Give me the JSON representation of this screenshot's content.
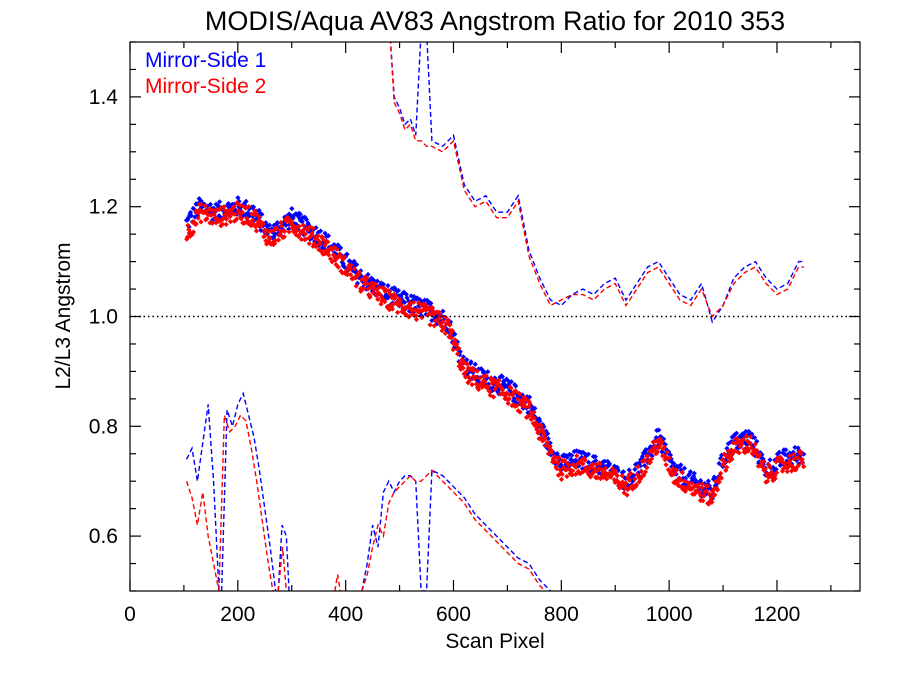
{
  "chart_data": {
    "type": "scatter",
    "title": "MODIS/Aqua AV83 Angstrom Ratio for 2010 353",
    "xlabel": "Scan Pixel",
    "ylabel": "L2/L3 Angstrom",
    "xlim": [
      0,
      1354
    ],
    "ylim": [
      0.5,
      1.5
    ],
    "xticks": [
      0,
      200,
      400,
      600,
      800,
      1000,
      1200
    ],
    "yticks": [
      0.6,
      0.8,
      1.0,
      1.2,
      1.4
    ],
    "xtick_labels": [
      "0",
      "200",
      "400",
      "600",
      "800",
      "1000",
      "1200"
    ],
    "ytick_labels": [
      "0.6",
      "0.8",
      "1.0",
      "1.2",
      "1.4"
    ],
    "reference_line": {
      "y": 1.0,
      "style": "dotted",
      "color": "#000000"
    },
    "grid": false,
    "legend_placement": "top-left",
    "series": [
      {
        "name": "Mirror-Side 1",
        "color": "#0000ff",
        "trend": {
          "x": [
            105,
            130,
            160,
            200,
            230,
            260,
            300,
            330,
            360,
            400,
            430,
            460,
            500,
            530,
            560,
            590,
            620,
            650,
            700,
            740,
            770,
            800,
            830,
            860,
            890,
            920,
            950,
            980,
            1010,
            1040,
            1060,
            1080,
            1100,
            1120,
            1150,
            1180,
            1210,
            1250
          ],
          "y": [
            1.17,
            1.2,
            1.19,
            1.2,
            1.19,
            1.15,
            1.18,
            1.16,
            1.14,
            1.1,
            1.07,
            1.05,
            1.03,
            1.02,
            1.01,
            0.99,
            0.91,
            0.89,
            0.87,
            0.84,
            0.78,
            0.73,
            0.74,
            0.73,
            0.72,
            0.7,
            0.73,
            0.78,
            0.72,
            0.7,
            0.69,
            0.68,
            0.74,
            0.77,
            0.78,
            0.72,
            0.74,
            0.75
          ]
        },
        "upper_dashed": {
          "x": [
            480,
            490,
            500,
            510,
            520,
            530,
            540,
            550,
            560,
            580,
            600,
            620,
            640,
            660,
            680,
            700,
            720,
            740,
            760,
            780,
            800,
            820,
            840,
            860,
            880,
            900,
            920,
            940,
            960,
            980,
            1000,
            1020,
            1040,
            1060,
            1080,
            1100,
            1120,
            1140,
            1160,
            1180,
            1200,
            1220,
            1240,
            1250
          ],
          "y": [
            1.55,
            1.4,
            1.38,
            1.35,
            1.36,
            1.33,
            1.52,
            1.52,
            1.32,
            1.31,
            1.33,
            1.24,
            1.21,
            1.22,
            1.19,
            1.19,
            1.22,
            1.12,
            1.07,
            1.03,
            1.02,
            1.04,
            1.05,
            1.04,
            1.06,
            1.07,
            1.03,
            1.06,
            1.09,
            1.1,
            1.07,
            1.04,
            1.03,
            1.06,
            0.99,
            1.02,
            1.07,
            1.09,
            1.1,
            1.07,
            1.05,
            1.06,
            1.1,
            1.1
          ]
        },
        "lower_dashed_segments": [
          {
            "x": [
              105,
              115,
              125,
              135,
              145,
              155,
              165
            ],
            "y": [
              0.74,
              0.76,
              0.7,
              0.77,
              0.84,
              0.7,
              0.5
            ]
          },
          {
            "x": [
              170,
              180,
              190,
              200,
              210,
              220,
              230,
              240,
              250,
              260,
              270
            ],
            "y": [
              0.5,
              0.83,
              0.8,
              0.84,
              0.86,
              0.82,
              0.78,
              0.72,
              0.65,
              0.58,
              0.5
            ]
          },
          {
            "x": [
              275,
              282,
              290,
              295
            ],
            "y": [
              0.5,
              0.62,
              0.6,
              0.5
            ]
          },
          {
            "x": [
              430,
              440,
              450,
              460,
              470,
              480,
              490,
              500,
              510,
              520,
              530,
              540,
              550,
              560,
              580,
              600,
              620,
              640,
              660,
              680,
              700,
              720,
              740,
              760,
              780,
              790
            ],
            "y": [
              0.5,
              0.55,
              0.62,
              0.58,
              0.68,
              0.7,
              0.68,
              0.7,
              0.71,
              0.71,
              0.7,
              0.5,
              0.5,
              0.72,
              0.71,
              0.69,
              0.67,
              0.64,
              0.62,
              0.6,
              0.58,
              0.56,
              0.55,
              0.52,
              0.5,
              0.49
            ]
          }
        ]
      },
      {
        "name": "Mirror-Side 2",
        "color": "#ff0000",
        "trend": {
          "x": [
            105,
            130,
            160,
            200,
            230,
            260,
            300,
            330,
            360,
            400,
            430,
            460,
            500,
            530,
            560,
            590,
            620,
            650,
            700,
            740,
            770,
            800,
            830,
            860,
            890,
            920,
            950,
            980,
            1010,
            1040,
            1060,
            1080,
            1100,
            1120,
            1150,
            1180,
            1210,
            1250
          ],
          "y": [
            1.15,
            1.19,
            1.18,
            1.19,
            1.18,
            1.14,
            1.17,
            1.15,
            1.13,
            1.09,
            1.06,
            1.04,
            1.02,
            1.01,
            1.0,
            0.98,
            0.9,
            0.88,
            0.86,
            0.83,
            0.77,
            0.72,
            0.73,
            0.72,
            0.71,
            0.69,
            0.72,
            0.77,
            0.71,
            0.69,
            0.68,
            0.67,
            0.73,
            0.76,
            0.77,
            0.71,
            0.73,
            0.74
          ]
        },
        "upper_dashed": {
          "x": [
            480,
            490,
            500,
            510,
            520,
            530,
            540,
            550,
            560,
            580,
            600,
            620,
            640,
            660,
            680,
            700,
            720,
            740,
            760,
            780,
            800,
            820,
            840,
            860,
            880,
            900,
            920,
            940,
            960,
            980,
            1000,
            1020,
            1040,
            1060,
            1080,
            1100,
            1120,
            1140,
            1160,
            1180,
            1200,
            1220,
            1240,
            1250
          ],
          "y": [
            1.55,
            1.39,
            1.37,
            1.34,
            1.35,
            1.32,
            1.32,
            1.31,
            1.31,
            1.3,
            1.32,
            1.23,
            1.2,
            1.21,
            1.18,
            1.18,
            1.21,
            1.11,
            1.06,
            1.02,
            1.03,
            1.04,
            1.04,
            1.03,
            1.05,
            1.06,
            1.02,
            1.05,
            1.08,
            1.09,
            1.06,
            1.03,
            1.02,
            1.05,
            1.0,
            1.02,
            1.06,
            1.08,
            1.09,
            1.06,
            1.04,
            1.05,
            1.09,
            1.09
          ]
        },
        "lower_dashed_segments": [
          {
            "x": [
              105,
              115,
              125,
              135,
              145,
              155,
              165
            ],
            "y": [
              0.7,
              0.67,
              0.62,
              0.68,
              0.6,
              0.55,
              0.5
            ]
          },
          {
            "x": [
              165,
              175,
              185,
              195,
              205,
              215,
              225,
              235,
              245,
              255,
              265
            ],
            "y": [
              0.5,
              0.82,
              0.79,
              0.8,
              0.82,
              0.81,
              0.76,
              0.7,
              0.63,
              0.56,
              0.5
            ]
          },
          {
            "x": [
              275,
              283,
              290
            ],
            "y": [
              0.5,
              0.58,
              0.5
            ]
          },
          {
            "x": [
              380,
              385,
              390
            ],
            "y": [
              0.5,
              0.53,
              0.5
            ]
          },
          {
            "x": [
              430,
              440,
              450,
              460,
              470,
              480,
              490,
              500,
              510,
              520,
              530,
              540,
              550,
              560,
              580,
              600,
              620,
              640,
              660,
              680,
              700,
              720,
              740,
              760,
              780,
              790
            ],
            "y": [
              0.5,
              0.53,
              0.58,
              0.62,
              0.6,
              0.66,
              0.68,
              0.69,
              0.7,
              0.71,
              0.7,
              0.7,
              0.71,
              0.72,
              0.7,
              0.68,
              0.66,
              0.63,
              0.61,
              0.59,
              0.57,
              0.55,
              0.54,
              0.51,
              0.49,
              0.48
            ]
          }
        ]
      }
    ]
  }
}
